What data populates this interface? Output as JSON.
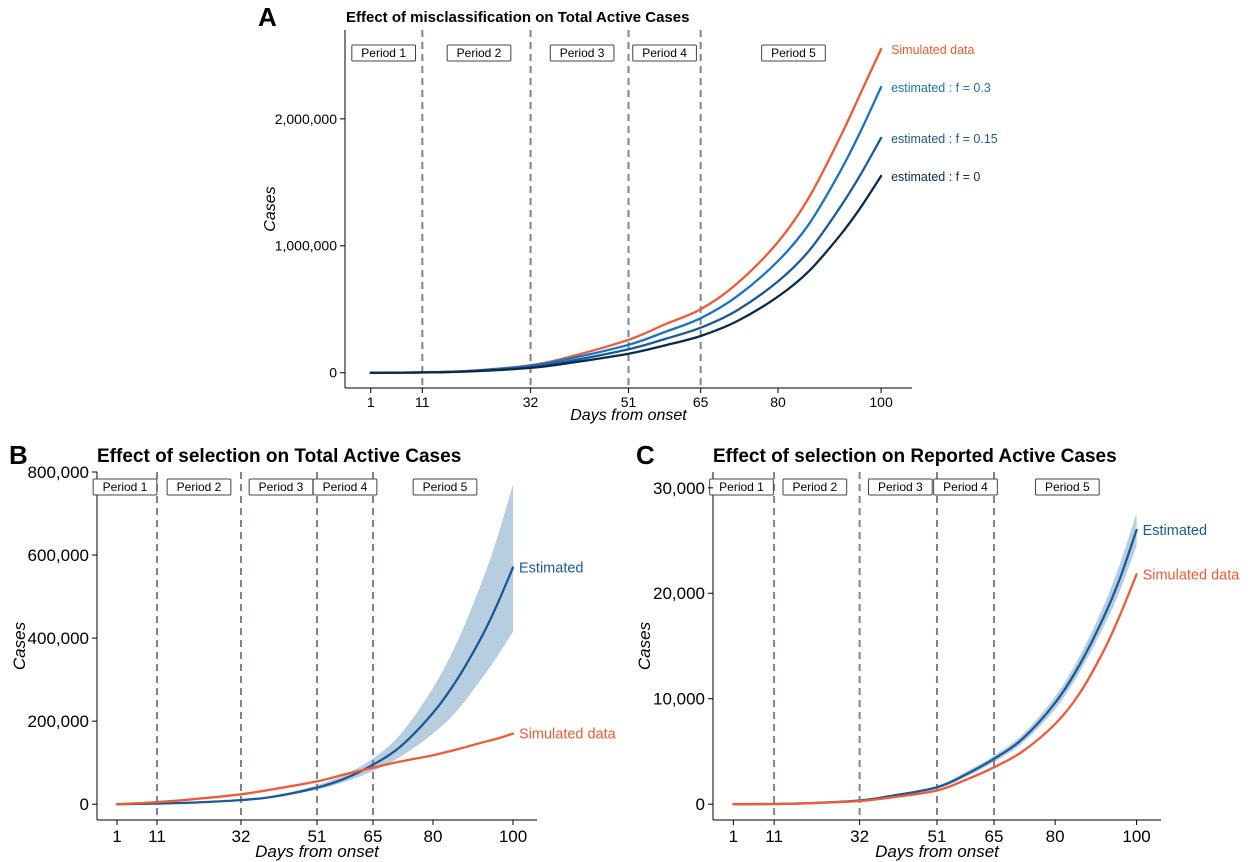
{
  "chart_data": [
    {
      "panel": "A",
      "type": "line",
      "title": "Effect of misclassification on Total Active Cases",
      "xlabel": "Days from onset",
      "ylabel": "Cases",
      "x_ticks": [
        1,
        11,
        32,
        51,
        65,
        80,
        100
      ],
      "y_ticks": [
        0,
        1000000,
        2000000
      ],
      "y_tick_labels": [
        "0",
        "1,000,000",
        "2,000,000"
      ],
      "xlim": [
        -4,
        106
      ],
      "ylim": [
        -120000,
        2700000
      ],
      "grid": false,
      "period_boundaries": [
        11,
        32,
        51,
        65
      ],
      "periods": [
        {
          "label": "Period 1",
          "x": 3.5
        },
        {
          "label": "Period 2",
          "x": 22
        },
        {
          "label": "Period 3",
          "x": 42
        },
        {
          "label": "Period 4",
          "x": 58
        },
        {
          "label": "Period 5",
          "x": 83
        }
      ],
      "series": [
        {
          "name": "Simulated data",
          "color": "#f05a35",
          "x": [
            1,
            11,
            20,
            32,
            40,
            51,
            58,
            65,
            72,
            80,
            86,
            92,
            96,
            100
          ],
          "y": [
            0,
            3000,
            15000,
            60000,
            130000,
            260000,
            380000,
            500000,
            700000,
            1030000,
            1380000,
            1850000,
            2200000,
            2550000
          ]
        },
        {
          "name": "estimated : f = 0.3",
          "color": "#1873c7",
          "x": [
            1,
            11,
            20,
            32,
            40,
            51,
            58,
            65,
            72,
            80,
            86,
            92,
            96,
            100
          ],
          "y": [
            0,
            3000,
            14000,
            55000,
            115000,
            220000,
            320000,
            430000,
            600000,
            880000,
            1170000,
            1580000,
            1900000,
            2250000
          ]
        },
        {
          "name": "estimated : f = 0.15",
          "color": "#1a5a96",
          "x": [
            1,
            11,
            20,
            32,
            40,
            51,
            58,
            65,
            72,
            80,
            86,
            92,
            96,
            100
          ],
          "y": [
            0,
            2500,
            12000,
            45000,
            95000,
            185000,
            265000,
            355000,
            490000,
            720000,
            960000,
            1300000,
            1560000,
            1850000
          ]
        },
        {
          "name": "estimated : f = 0",
          "color": "#0a2a4a",
          "x": [
            1,
            11,
            20,
            32,
            40,
            51,
            58,
            65,
            72,
            80,
            86,
            92,
            96,
            100
          ],
          "y": [
            0,
            2000,
            10000,
            38000,
            80000,
            150000,
            215000,
            290000,
            405000,
            600000,
            800000,
            1080000,
            1300000,
            1550000
          ]
        }
      ]
    },
    {
      "panel": "B",
      "type": "line",
      "title": "Effect of selection on Total Active Cases",
      "xlabel": "Days from onset",
      "ylabel": "Cases",
      "x_ticks": [
        1,
        11,
        32,
        51,
        65,
        80,
        100
      ],
      "y_ticks": [
        0,
        200000,
        400000,
        600000,
        800000
      ],
      "y_tick_labels": [
        "0",
        "200,000",
        "400,000",
        "600,000",
        "800,000"
      ],
      "xlim": [
        -4,
        106
      ],
      "ylim": [
        -38000,
        800000
      ],
      "grid": false,
      "period_boundaries": [
        11,
        32,
        51,
        65
      ],
      "periods": [
        {
          "label": "Period 1",
          "x": 3
        },
        {
          "label": "Period 2",
          "x": 21.5
        },
        {
          "label": "Period 3",
          "x": 42
        },
        {
          "label": "Period 4",
          "x": 58
        },
        {
          "label": "Period 5",
          "x": 83
        }
      ],
      "series": [
        {
          "name": "Estimated",
          "color": "#1a5a96",
          "x": [
            1,
            11,
            20,
            32,
            40,
            51,
            58,
            65,
            72,
            80,
            86,
            92,
            96,
            100
          ],
          "y": [
            0,
            1500,
            4000,
            10000,
            18000,
            40000,
            62000,
            95000,
            140000,
            220000,
            300000,
            400000,
            480000,
            570000
          ],
          "lower": [
            0,
            1400,
            3700,
            9000,
            16000,
            35000,
            54000,
            80000,
            115000,
            170000,
            225000,
            300000,
            355000,
            415000
          ],
          "upper": [
            0,
            1600,
            4300,
            11000,
            20000,
            46000,
            72000,
            110000,
            170000,
            280000,
            390000,
            530000,
            640000,
            770000
          ]
        },
        {
          "name": "Simulated data",
          "color": "#f05a35",
          "x": [
            1,
            11,
            20,
            32,
            40,
            51,
            58,
            65,
            72,
            80,
            86,
            92,
            96,
            100
          ],
          "y": [
            0,
            5000,
            12000,
            24000,
            36000,
            55000,
            72000,
            88000,
            103000,
            118000,
            132000,
            148000,
            158000,
            170000
          ]
        }
      ]
    },
    {
      "panel": "C",
      "type": "line",
      "title": "Effect of selection on Reported Active Cases",
      "xlabel": "Days from onset",
      "ylabel": "Cases",
      "x_ticks": [
        1,
        11,
        32,
        51,
        65,
        80,
        100
      ],
      "y_ticks": [
        0,
        10000,
        20000,
        30000
      ],
      "y_tick_labels": [
        "0",
        "10,000",
        "20,000",
        "30,000"
      ],
      "xlim": [
        -4,
        106
      ],
      "ylim": [
        -1500,
        31500
      ],
      "grid": false,
      "period_boundaries": [
        11,
        32,
        51,
        65
      ],
      "periods": [
        {
          "label": "Period 1",
          "x": 3
        },
        {
          "label": "Period 2",
          "x": 21
        },
        {
          "label": "Period 3",
          "x": 42
        },
        {
          "label": "Period 4",
          "x": 58
        },
        {
          "label": "Period 5",
          "x": 83
        }
      ],
      "series": [
        {
          "name": "Estimated",
          "color": "#1a5a96",
          "x": [
            1,
            11,
            20,
            32,
            40,
            51,
            58,
            65,
            72,
            80,
            86,
            92,
            96,
            100
          ],
          "y": [
            0,
            20,
            100,
            350,
            800,
            1600,
            2800,
            4300,
            6200,
            9600,
            13200,
            17800,
            21500,
            26000
          ],
          "lower": [
            0,
            15,
            90,
            320,
            720,
            1450,
            2550,
            4000,
            5800,
            9000,
            12500,
            16900,
            20300,
            24500
          ],
          "upper": [
            0,
            25,
            110,
            380,
            880,
            1750,
            3050,
            4600,
            6600,
            10200,
            14000,
            18900,
            22900,
            27600
          ]
        },
        {
          "name": "Simulated data",
          "color": "#f05a35",
          "x": [
            1,
            11,
            20,
            32,
            40,
            51,
            58,
            65,
            72,
            80,
            86,
            92,
            96,
            100
          ],
          "y": [
            0,
            20,
            90,
            300,
            650,
            1300,
            2300,
            3500,
            5000,
            7600,
            10500,
            14600,
            18000,
            21800
          ]
        }
      ]
    }
  ]
}
